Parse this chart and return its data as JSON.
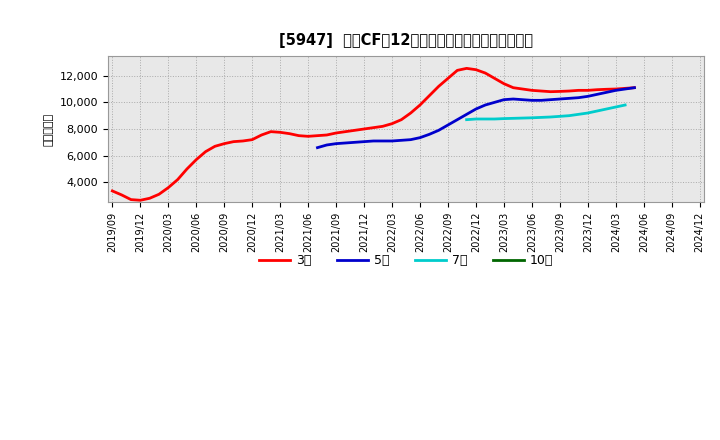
{
  "title": "[5947]  営業CFの12か月移動合計の標準偏差の推移",
  "ylabel": "（百万円）",
  "ylim": [
    2500,
    13500
  ],
  "yticks": [
    4000,
    6000,
    8000,
    10000,
    12000
  ],
  "series": [
    {
      "name": "3年",
      "color": "#ff0000",
      "y": [
        3350,
        3050,
        2700,
        2650,
        2800,
        3100,
        3600,
        4200,
        5000,
        5700,
        6300,
        6700,
        6900,
        7050,
        7100,
        7200,
        7550,
        7800,
        7750,
        7650,
        7500,
        7450,
        7500,
        7550,
        7700,
        7800,
        7900,
        8000,
        8100,
        8200,
        8400,
        8700,
        9200,
        9800,
        10500,
        11200,
        11800,
        12400,
        12550,
        12450,
        12200,
        11800,
        11400,
        11100,
        11000,
        10900,
        10850,
        10800,
        10820,
        10850,
        10900,
        10900,
        10950,
        10980,
        11000,
        11050,
        11100,
        null,
        null,
        null,
        null,
        null,
        null,
        null
      ],
      "start": 0
    },
    {
      "name": "5年",
      "color": "#0000cc",
      "y": [
        null,
        null,
        null,
        null,
        null,
        null,
        null,
        null,
        null,
        null,
        null,
        null,
        null,
        null,
        null,
        null,
        null,
        null,
        null,
        null,
        null,
        null,
        6600,
        6800,
        6900,
        6950,
        7000,
        7050,
        7100,
        7100,
        7100,
        7150,
        7200,
        7350,
        7600,
        7900,
        8300,
        8700,
        9100,
        9500,
        9800,
        10000,
        10200,
        10250,
        10200,
        10150,
        10150,
        10200,
        10250,
        10300,
        10350,
        10450,
        10600,
        10750,
        10900,
        11000,
        11100,
        null,
        null,
        null,
        null,
        null,
        null,
        null
      ],
      "start": 0
    },
    {
      "name": "7年",
      "color": "#00cccc",
      "y": [
        null,
        null,
        null,
        null,
        null,
        null,
        null,
        null,
        null,
        null,
        null,
        null,
        null,
        null,
        null,
        null,
        null,
        null,
        null,
        null,
        null,
        null,
        null,
        null,
        null,
        null,
        null,
        null,
        null,
        null,
        null,
        null,
        null,
        null,
        null,
        null,
        null,
        null,
        8700,
        8750,
        8750,
        8750,
        8780,
        8800,
        8820,
        8840,
        8870,
        8900,
        8950,
        9000,
        9100,
        9200,
        9350,
        9500,
        9650,
        9800,
        null,
        null,
        null,
        null,
        null,
        null,
        null,
        null
      ],
      "start": 0
    },
    {
      "name": "10年",
      "color": "#006600",
      "y": [],
      "start": 0
    }
  ],
  "xtick_labels": [
    "2019/09",
    "2019/12",
    "2020/03",
    "2020/06",
    "2020/09",
    "2020/12",
    "2021/03",
    "2021/06",
    "2021/09",
    "2021/12",
    "2022/03",
    "2022/06",
    "2022/09",
    "2022/12",
    "2023/03",
    "2023/06",
    "2023/09",
    "2023/12",
    "2024/03",
    "2024/06",
    "2024/09",
    "2024/12"
  ],
  "xtick_positions": [
    0,
    3,
    6,
    9,
    12,
    15,
    18,
    21,
    24,
    27,
    30,
    33,
    36,
    39,
    42,
    45,
    48,
    51,
    54,
    57,
    60,
    63
  ],
  "n_points": 64,
  "background_color": "#ffffff",
  "plot_bg_color": "#e8e8e8",
  "grid_color": "#aaaaaa"
}
